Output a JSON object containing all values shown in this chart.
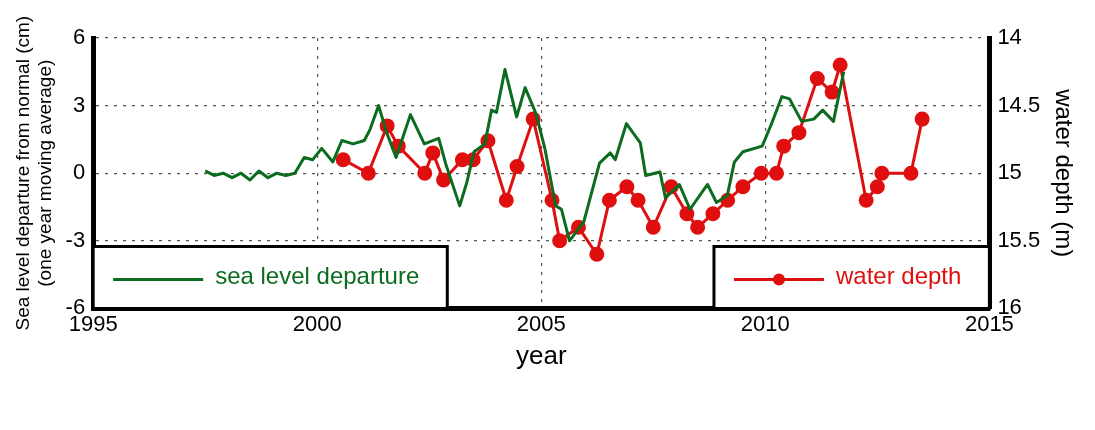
{
  "chart_data": {
    "type": "line",
    "xlabel": "year",
    "ylabel": "Sea level departure from normal (cm)\n(one year moving average)",
    "y2label": "water depth (m)",
    "xlim": [
      1995,
      2015
    ],
    "xticks": [
      1995,
      2000,
      2005,
      2010,
      2015
    ],
    "ylim": [
      -6,
      6
    ],
    "yticks": [
      -6,
      -3,
      0,
      3,
      6
    ],
    "y2lim": [
      16,
      14
    ],
    "y2ticks": [
      14,
      14.5,
      15,
      15.5,
      16
    ],
    "grid": true,
    "legend": "bottom",
    "series": [
      {
        "name": "sea level departure",
        "color": "#0b6b1e",
        "marker": "none",
        "x": [
          1997.5,
          1997.7,
          1997.9,
          1998.1,
          1998.3,
          1998.5,
          1998.7,
          1998.9,
          1999.1,
          1999.3,
          1999.5,
          1999.71,
          1999.9,
          2000.1,
          2000.35,
          2000.55,
          2000.8,
          2001.05,
          2001.17,
          2001.37,
          2001.55,
          2001.76,
          2002.08,
          2002.39,
          2002.71,
          2002.87,
          2003.18,
          2003.34,
          2003.5,
          2003.74,
          2003.89,
          2004.0,
          2004.19,
          2004.45,
          2004.64,
          2004.88,
          2005.08,
          2005.32,
          2005.45,
          2005.63,
          2005.95,
          2006.3,
          2006.54,
          2006.65,
          2006.9,
          2007.21,
          2007.33,
          2007.65,
          2007.77,
          2008.08,
          2008.32,
          2008.71,
          2008.91,
          2009.15,
          2009.31,
          2009.5,
          2009.93,
          2010.13,
          2010.37,
          2010.54,
          2010.81,
          2011.08,
          2011.28,
          2011.52,
          2011.75
        ],
        "values": [
          0.1,
          -0.1,
          0.0,
          -0.2,
          0.0,
          -0.3,
          0.1,
          -0.2,
          0.0,
          -0.1,
          0.0,
          0.7,
          0.6,
          1.1,
          0.5,
          1.45,
          1.3,
          1.45,
          1.9,
          3.0,
          1.8,
          0.7,
          2.6,
          1.3,
          1.55,
          0.4,
          -1.45,
          -0.4,
          0.95,
          1.3,
          2.8,
          2.7,
          4.6,
          2.5,
          3.8,
          2.65,
          1.1,
          -1.45,
          -1.6,
          -3.0,
          -2.15,
          0.45,
          0.9,
          0.6,
          2.2,
          1.35,
          -0.1,
          0.05,
          -1.1,
          -0.5,
          -1.6,
          -0.5,
          -1.3,
          -1.0,
          0.5,
          0.95,
          1.2,
          2.15,
          3.4,
          3.3,
          2.3,
          2.4,
          2.8,
          2.3,
          4.5
        ]
      },
      {
        "name": "water depth",
        "color": "#e00f0f",
        "axis": "y2",
        "marker": "circle",
        "x": [
          2000.58,
          2001.14,
          2001.56,
          2001.81,
          2002.4,
          2002.58,
          2002.82,
          2003.24,
          2003.48,
          2003.81,
          2004.22,
          2004.46,
          2004.82,
          2005.24,
          2005.41,
          2005.83,
          2006.24,
          2006.52,
          2006.91,
          2007.16,
          2007.5,
          2007.9,
          2008.25,
          2008.49,
          2008.83,
          2009.16,
          2009.5,
          2009.91,
          2010.25,
          2010.41,
          2010.75,
          2011.16,
          2011.49,
          2011.67,
          2012.25,
          2012.5,
          2012.6,
          2013.25,
          2013.5
        ],
        "values": [
          14.9,
          15.0,
          14.65,
          14.8,
          15.0,
          14.85,
          15.05,
          14.9,
          14.9,
          14.76,
          15.2,
          14.95,
          14.6,
          15.2,
          15.5,
          15.4,
          15.6,
          15.2,
          15.1,
          15.2,
          15.4,
          15.1,
          15.3,
          15.4,
          15.3,
          15.2,
          15.1,
          15.0,
          15.0,
          14.8,
          14.7,
          14.3,
          14.4,
          14.2,
          15.2,
          15.1,
          15.0,
          15.0,
          14.6
        ]
      }
    ]
  }
}
